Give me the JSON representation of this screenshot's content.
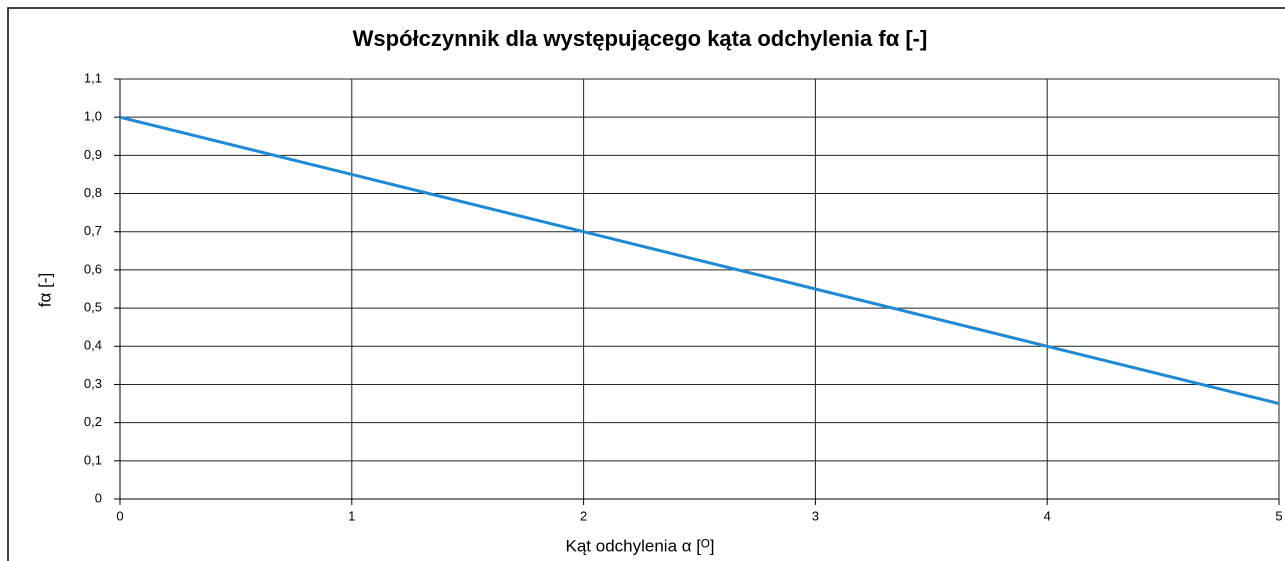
{
  "chart_data": {
    "type": "line",
    "title": "Współczynnik dla występującego kąta odchylenia fα [-]",
    "x_label": "Kąt odchylenia α [ᴼ]",
    "y_label": "fα [-]",
    "x": [
      0,
      1,
      2,
      3,
      4,
      5
    ],
    "series": [
      {
        "color": "#1e8ad6",
        "values": [
          1.0,
          0.85,
          0.7,
          0.55,
          0.4,
          0.25
        ]
      }
    ],
    "xlim": [
      0,
      5
    ],
    "xticks": [
      0,
      1,
      2,
      3,
      4,
      5
    ],
    "ylim": [
      0,
      1.1
    ],
    "yticks": [
      0,
      {
        "value": 0.1,
        "label": "0,1"
      },
      {
        "value": 0.2,
        "label": "0,2"
      },
      {
        "value": 0.3,
        "label": "0,3"
      },
      {
        "value": 0.4,
        "label": "0,4"
      },
      {
        "value": 0.5,
        "label": "0,5"
      },
      {
        "value": 0.6,
        "label": "0,6"
      },
      {
        "value": 0.7,
        "label": "0,7"
      },
      {
        "value": 0.8,
        "label": "0,8"
      },
      {
        "value": 0.9,
        "label": "0,9"
      },
      {
        "value": 1.0,
        "label": "1,0"
      },
      {
        "value": 1.1,
        "label": "1,1"
      }
    ],
    "grid": true
  }
}
